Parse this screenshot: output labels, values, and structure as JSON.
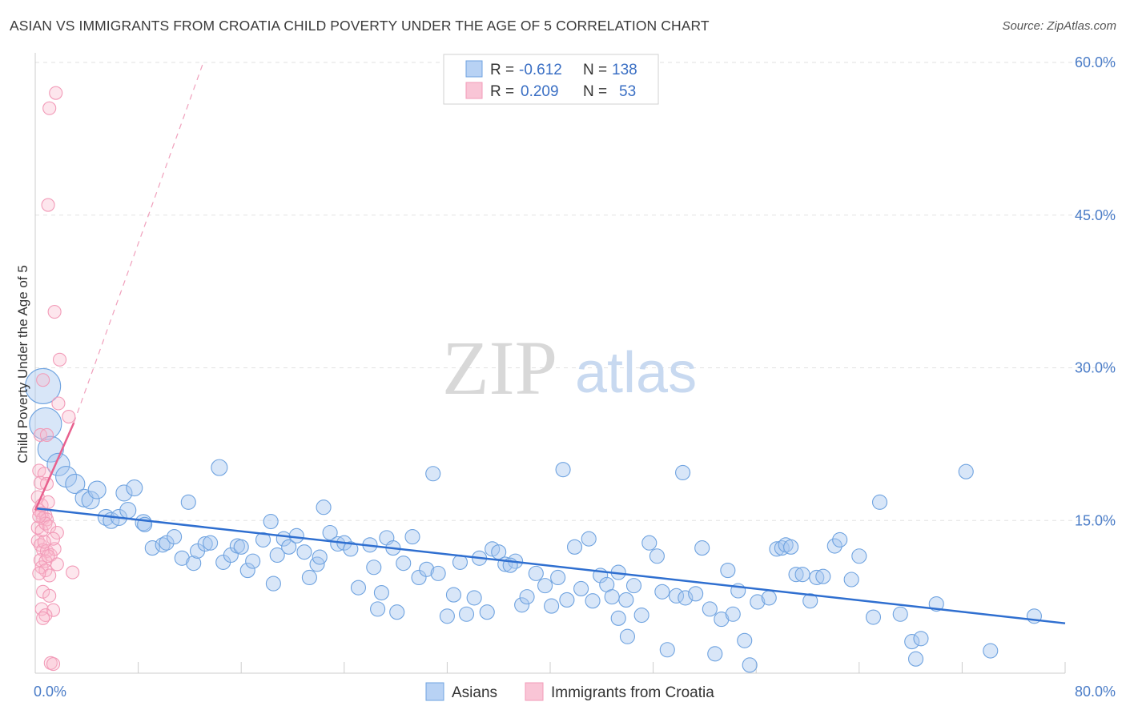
{
  "title": "ASIAN VS IMMIGRANTS FROM CROATIA CHILD POVERTY UNDER THE AGE OF 5 CORRELATION CHART",
  "source": "Source: ZipAtlas.com",
  "watermark": {
    "zip": "ZIP",
    "atlas": "atlas"
  },
  "legend_top": {
    "rows": [
      {
        "r_label": "R =",
        "r_value": "-0.612",
        "n_label": "N =",
        "n_value": "138",
        "color": "#a8c8f0"
      },
      {
        "r_label": "R =",
        "r_value": "0.209",
        "n_label": "N =",
        "n_value": "53",
        "color": "#f8b8cc"
      }
    ]
  },
  "chart_data": {
    "type": "scatter",
    "title": "ASIAN VS IMMIGRANTS FROM CROATIA CHILD POVERTY UNDER THE AGE OF 5 CORRELATION CHART",
    "xlabel": "",
    "ylabel": "Child Poverty Under the Age of 5",
    "xlim": [
      0,
      80
    ],
    "ylim": [
      0,
      60
    ],
    "x_tick_labels": [
      "0.0%",
      "80.0%"
    ],
    "y_ticks": [
      15,
      30,
      45,
      60
    ],
    "y_tick_labels": [
      "15.0%",
      "30.0%",
      "45.0%",
      "60.0%"
    ],
    "grid": true,
    "legend_placement": "top-center",
    "series": [
      {
        "name": "Asians",
        "color": "#6fa3e0",
        "trend": {
          "x": [
            0,
            80
          ],
          "y": [
            16.2,
            4.9
          ],
          "color": "#2f6fd0"
        },
        "points": [
          [
            0.6,
            28.2,
            22
          ],
          [
            0.8,
            24.5,
            20
          ],
          [
            1.2,
            22,
            16
          ],
          [
            1.8,
            20.5,
            14
          ],
          [
            2.4,
            19.3,
            13
          ],
          [
            3.1,
            18.6,
            12
          ],
          [
            3.8,
            17.2,
            11
          ],
          [
            4.3,
            17.0,
            11
          ],
          [
            4.8,
            18.0,
            11
          ],
          [
            5.5,
            15.3,
            10
          ],
          [
            5.9,
            15.0,
            10
          ],
          [
            6.5,
            15.3,
            10
          ],
          [
            6.9,
            17.7,
            10
          ],
          [
            7.7,
            18.2,
            10
          ],
          [
            7.2,
            16.0,
            10
          ],
          [
            8.4,
            14.8,
            10
          ],
          [
            8.5,
            14.6,
            9
          ],
          [
            9.1,
            12.3,
            9
          ],
          [
            9.9,
            12.6,
            9
          ],
          [
            10.2,
            12.8,
            9
          ],
          [
            10.8,
            13.4,
            9
          ],
          [
            11.4,
            11.3,
            9
          ],
          [
            11.9,
            16.8,
            9
          ],
          [
            12.3,
            10.8,
            9
          ],
          [
            12.6,
            12.0,
            9
          ],
          [
            13.2,
            12.7,
            9
          ],
          [
            13.6,
            12.8,
            9
          ],
          [
            14.3,
            20.2,
            10
          ],
          [
            14.6,
            10.9,
            9
          ],
          [
            15.2,
            11.6,
            9
          ],
          [
            15.7,
            12.5,
            9
          ],
          [
            16.0,
            12.4,
            9
          ],
          [
            16.5,
            10.1,
            9
          ],
          [
            16.9,
            11.0,
            9
          ],
          [
            17.7,
            13.1,
            9
          ],
          [
            18.3,
            14.9,
            9
          ],
          [
            18.8,
            11.6,
            9
          ],
          [
            19.3,
            13.2,
            9
          ],
          [
            19.7,
            12.4,
            9
          ],
          [
            20.3,
            13.5,
            9
          ],
          [
            20.9,
            11.9,
            9
          ],
          [
            21.3,
            9.4,
            9
          ],
          [
            21.9,
            10.7,
            9
          ],
          [
            22.4,
            16.3,
            9
          ],
          [
            22.9,
            13.8,
            9
          ],
          [
            23.5,
            12.7,
            9
          ],
          [
            24.0,
            12.8,
            9
          ],
          [
            24.5,
            12.2,
            9
          ],
          [
            25.1,
            8.4,
            9
          ],
          [
            26.0,
            12.6,
            9
          ],
          [
            26.3,
            10.4,
            9
          ],
          [
            26.9,
            7.9,
            9
          ],
          [
            27.3,
            13.3,
            9
          ],
          [
            27.8,
            12.3,
            9
          ],
          [
            28.1,
            6.0,
            9
          ],
          [
            28.6,
            10.8,
            9
          ],
          [
            29.3,
            13.4,
            9
          ],
          [
            29.8,
            9.4,
            9
          ],
          [
            30.4,
            10.2,
            9
          ],
          [
            30.9,
            19.6,
            9
          ],
          [
            31.3,
            9.8,
            9
          ],
          [
            32.0,
            5.6,
            9
          ],
          [
            32.5,
            7.7,
            9
          ],
          [
            33.0,
            10.9,
            9
          ],
          [
            33.5,
            5.8,
            9
          ],
          [
            34.1,
            7.4,
            9
          ],
          [
            34.5,
            11.3,
            9
          ],
          [
            35.1,
            6.0,
            9
          ],
          [
            35.5,
            12.2,
            9
          ],
          [
            36.0,
            11.9,
            9
          ],
          [
            36.5,
            10.7,
            9
          ],
          [
            37.3,
            11.0,
            9
          ],
          [
            37.8,
            6.7,
            9
          ],
          [
            38.2,
            7.5,
            9
          ],
          [
            38.9,
            9.8,
            9
          ],
          [
            39.6,
            8.6,
            9
          ],
          [
            40.1,
            6.6,
            9
          ],
          [
            40.6,
            9.4,
            9
          ],
          [
            41.0,
            20.0,
            9
          ],
          [
            41.3,
            7.2,
            9
          ],
          [
            41.9,
            12.4,
            9
          ],
          [
            42.4,
            8.3,
            9
          ],
          [
            43.0,
            13.2,
            9
          ],
          [
            43.3,
            7.1,
            9
          ],
          [
            43.9,
            9.6,
            9
          ],
          [
            44.4,
            8.7,
            9
          ],
          [
            44.8,
            7.5,
            9
          ],
          [
            45.3,
            9.9,
            9
          ],
          [
            45.9,
            7.2,
            9
          ],
          [
            46.5,
            8.6,
            9
          ],
          [
            47.1,
            5.7,
            9
          ],
          [
            47.7,
            12.8,
            9
          ],
          [
            48.3,
            11.5,
            9
          ],
          [
            48.7,
            8.0,
            9
          ],
          [
            49.1,
            2.3,
            9
          ],
          [
            49.8,
            7.6,
            9
          ],
          [
            50.3,
            19.7,
            9
          ],
          [
            50.5,
            7.4,
            9
          ],
          [
            51.3,
            7.8,
            9
          ],
          [
            51.8,
            12.3,
            9
          ],
          [
            52.4,
            6.3,
            9
          ],
          [
            52.8,
            1.9,
            9
          ],
          [
            53.3,
            5.3,
            9
          ],
          [
            53.8,
            10.1,
            9
          ],
          [
            54.2,
            5.8,
            9
          ],
          [
            54.6,
            8.1,
            9
          ],
          [
            55.1,
            3.2,
            9
          ],
          [
            55.5,
            0.8,
            9
          ],
          [
            56.1,
            7.0,
            9
          ],
          [
            57.0,
            7.4,
            9
          ],
          [
            57.6,
            12.2,
            9
          ],
          [
            58.0,
            12.3,
            9
          ],
          [
            58.3,
            12.6,
            9
          ],
          [
            58.7,
            12.4,
            9
          ],
          [
            59.1,
            9.7,
            9
          ],
          [
            59.6,
            9.7,
            9
          ],
          [
            60.2,
            7.1,
            9
          ],
          [
            60.7,
            9.4,
            9
          ],
          [
            61.2,
            9.5,
            9
          ],
          [
            62.1,
            12.5,
            9
          ],
          [
            62.5,
            13.1,
            9
          ],
          [
            63.4,
            9.2,
            9
          ],
          [
            64.0,
            11.5,
            9
          ],
          [
            65.1,
            5.5,
            9
          ],
          [
            65.6,
            16.8,
            9
          ],
          [
            67.2,
            5.8,
            9
          ],
          [
            68.1,
            3.1,
            9
          ],
          [
            68.4,
            1.4,
            9
          ],
          [
            68.8,
            3.4,
            9
          ],
          [
            70.0,
            6.8,
            9
          ],
          [
            72.3,
            19.8,
            9
          ],
          [
            74.2,
            2.2,
            9
          ],
          [
            77.6,
            5.6,
            9
          ],
          [
            36.9,
            10.6,
            9
          ],
          [
            46.0,
            3.6,
            9
          ],
          [
            45.3,
            5.4,
            9
          ],
          [
            26.6,
            6.3,
            9
          ],
          [
            22.1,
            11.4,
            9
          ],
          [
            18.5,
            8.8,
            9
          ]
        ]
      },
      {
        "name": "Immigrants from Croatia",
        "color": "#f29bb8",
        "trend": {
          "x": [
            0,
            3.0
          ],
          "y": [
            16.0,
            24.6
          ],
          "color": "#e8608e",
          "dash_extends_to": [
            13.0,
            59.8
          ]
        },
        "points": [
          [
            1.1,
            55.5,
            8
          ],
          [
            1.6,
            57.0,
            8
          ],
          [
            1.0,
            46.0,
            8
          ],
          [
            1.5,
            35.5,
            8
          ],
          [
            1.9,
            30.8,
            8
          ],
          [
            0.6,
            28.8,
            8
          ],
          [
            1.8,
            26.5,
            8
          ],
          [
            2.6,
            25.2,
            8
          ],
          [
            0.4,
            23.4,
            8
          ],
          [
            0.9,
            23.4,
            8
          ],
          [
            0.3,
            19.9,
            8
          ],
          [
            0.7,
            19.6,
            8
          ],
          [
            0.4,
            18.7,
            8
          ],
          [
            0.9,
            18.6,
            8
          ],
          [
            0.2,
            17.3,
            8
          ],
          [
            0.3,
            16.0,
            8
          ],
          [
            0.5,
            15.7,
            8
          ],
          [
            0.6,
            15.2,
            8
          ],
          [
            0.8,
            15.5,
            8
          ],
          [
            0.9,
            15.1,
            8
          ],
          [
            0.2,
            14.3,
            8
          ],
          [
            0.5,
            14.0,
            8
          ],
          [
            0.8,
            14.7,
            8
          ],
          [
            1.1,
            14.4,
            8
          ],
          [
            1.7,
            13.8,
            8
          ],
          [
            0.2,
            13.0,
            8
          ],
          [
            0.4,
            12.6,
            8
          ],
          [
            0.6,
            12.1,
            8
          ],
          [
            0.9,
            12.0,
            8
          ],
          [
            1.2,
            11.6,
            8
          ],
          [
            1.5,
            12.2,
            8
          ],
          [
            0.4,
            11.1,
            8
          ],
          [
            0.8,
            11.0,
            8
          ],
          [
            1.0,
            11.5,
            8
          ],
          [
            1.7,
            10.7,
            8
          ],
          [
            0.5,
            10.4,
            8
          ],
          [
            0.8,
            10.1,
            8
          ],
          [
            1.1,
            9.6,
            8
          ],
          [
            0.3,
            9.8,
            8
          ],
          [
            2.9,
            9.9,
            8
          ],
          [
            0.6,
            8.0,
            8
          ],
          [
            1.1,
            7.6,
            8
          ],
          [
            0.5,
            6.3,
            8
          ],
          [
            1.4,
            6.2,
            8
          ],
          [
            0.8,
            5.7,
            8
          ],
          [
            0.6,
            5.4,
            8
          ],
          [
            1.2,
            1.0,
            8
          ],
          [
            1.4,
            0.9,
            8
          ],
          [
            0.3,
            15.4,
            8
          ],
          [
            1.4,
            13.2,
            8
          ],
          [
            0.7,
            12.9,
            8
          ],
          [
            0.5,
            16.5,
            8
          ],
          [
            1.0,
            16.8,
            8
          ]
        ]
      }
    ]
  }
}
